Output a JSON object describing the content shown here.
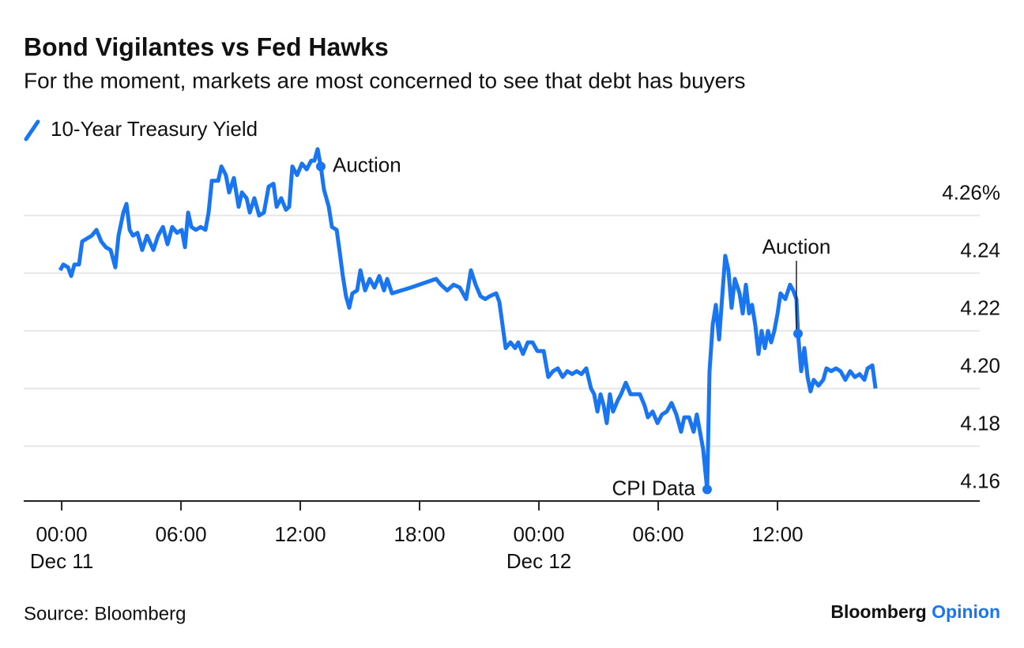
{
  "chart_data": {
    "type": "line",
    "title": "Bond Vigilantes vs Fed Hawks",
    "subtitle": "For the moment, markets are most concerned to see that debt has buyers",
    "source": "Source: Bloomberg",
    "brand": [
      "Bloomberg",
      "Opinion"
    ],
    "xlim": [
      -1.91,
      46.17
    ],
    "ylim": [
      4.161,
      4.285
    ],
    "xticks": [
      {
        "value": 0,
        "label": "00:00",
        "date": "Dec 11"
      },
      {
        "value": 6,
        "label": "06:00"
      },
      {
        "value": 12,
        "label": "12:00"
      },
      {
        "value": 18,
        "label": "18:00"
      },
      {
        "value": 24,
        "label": "00:00",
        "date": "Dec 12"
      },
      {
        "value": 30,
        "label": "06:00"
      },
      {
        "value": 36,
        "label": "12:00"
      }
    ],
    "yticks": [
      {
        "value": 4.26,
        "label": "4.26%"
      },
      4.24,
      4.22,
      {
        "value": 4.2,
        "label": "4.20"
      },
      4.18,
      4.16
    ],
    "grid": true,
    "annotations": [
      {
        "text": "Auction",
        "x": 13.03,
        "y": 4.277
      },
      {
        "text": "Auction",
        "x": 37.03,
        "y": 4.219
      },
      {
        "text": "CPI Data",
        "x": 32.46,
        "y": 4.165
      }
    ],
    "series": [
      {
        "name": "10-Year Treasury Yield",
        "color": "#1a75f0",
        "x": [
          -0.08,
          0.08,
          0.32,
          0.48,
          0.64,
          0.87,
          1.03,
          1.27,
          1.51,
          1.75,
          1.99,
          2.22,
          2.46,
          2.7,
          2.86,
          3.1,
          3.26,
          3.42,
          3.58,
          3.81,
          4.05,
          4.29,
          4.61,
          4.85,
          5.09,
          5.32,
          5.56,
          5.8,
          6.04,
          6.2,
          6.36,
          6.52,
          6.75,
          6.99,
          7.23,
          7.39,
          7.55,
          7.87,
          8.03,
          8.26,
          8.42,
          8.66,
          8.9,
          9.06,
          9.3,
          9.46,
          9.69,
          9.93,
          10.17,
          10.41,
          10.65,
          10.81,
          11.04,
          11.28,
          11.44,
          11.6,
          11.84,
          12.08,
          12.32,
          12.55,
          12.71,
          12.87,
          13.03,
          13.19,
          13.43,
          13.59,
          13.83,
          13.99,
          14.14,
          14.3,
          14.46,
          14.62,
          14.86,
          15.02,
          15.26,
          15.49,
          15.73,
          15.97,
          16.21,
          16.37,
          16.61,
          17.56,
          18.83,
          19.07,
          19.39,
          19.71,
          20.02,
          20.34,
          20.58,
          20.82,
          21.06,
          21.3,
          21.53,
          21.85,
          22.01,
          22.17,
          22.33,
          22.57,
          22.8,
          22.96,
          23.2,
          23.44,
          23.68,
          23.92,
          24.24,
          24.47,
          24.71,
          24.95,
          25.19,
          25.43,
          25.67,
          25.9,
          26.14,
          26.38,
          26.62,
          26.78,
          26.94,
          27.1,
          27.26,
          27.41,
          27.57,
          27.73,
          27.97,
          28.13,
          28.37,
          28.61,
          28.84,
          29.08,
          29.32,
          29.48,
          29.72,
          29.96,
          30.19,
          30.43,
          30.67,
          30.91,
          31.15,
          31.31,
          31.55,
          31.78,
          31.94,
          32.1,
          32.26,
          32.46,
          32.58,
          32.74,
          32.9,
          33.06,
          33.21,
          33.37,
          33.53,
          33.69,
          33.85,
          34.09,
          34.25,
          34.41,
          34.57,
          34.72,
          34.88,
          35.04,
          35.2,
          35.36,
          35.52,
          35.68,
          35.84,
          36.0,
          36.15,
          36.39,
          36.63,
          36.79,
          36.95,
          37.03,
          37.19,
          37.35,
          37.51,
          37.66,
          37.82,
          38.06,
          38.3,
          38.46,
          38.7,
          38.94,
          39.17,
          39.41,
          39.65,
          39.89,
          40.13,
          40.37,
          40.53,
          40.77,
          40.93
        ],
        "values": [
          4.241,
          4.243,
          4.242,
          4.239,
          4.243,
          4.243,
          4.251,
          4.252,
          4.253,
          4.255,
          4.251,
          4.249,
          4.248,
          4.242,
          4.253,
          4.261,
          4.264,
          4.255,
          4.253,
          4.254,
          4.248,
          4.253,
          4.248,
          4.253,
          4.256,
          4.25,
          4.256,
          4.254,
          4.255,
          4.249,
          4.261,
          4.256,
          4.255,
          4.256,
          4.255,
          4.261,
          4.272,
          4.272,
          4.277,
          4.274,
          4.268,
          4.273,
          4.263,
          4.268,
          4.266,
          4.261,
          4.266,
          4.26,
          4.261,
          4.27,
          4.271,
          4.263,
          4.266,
          4.262,
          4.263,
          4.277,
          4.274,
          4.278,
          4.276,
          4.279,
          4.279,
          4.283,
          4.277,
          4.269,
          4.263,
          4.256,
          4.255,
          4.247,
          4.239,
          4.232,
          4.228,
          4.233,
          4.234,
          4.241,
          4.234,
          4.238,
          4.235,
          4.239,
          4.234,
          4.238,
          4.233,
          4.235,
          4.238,
          4.236,
          4.234,
          4.236,
          4.235,
          4.231,
          4.241,
          4.236,
          4.232,
          4.231,
          4.232,
          4.233,
          4.23,
          4.222,
          4.214,
          4.216,
          4.214,
          4.216,
          4.212,
          4.216,
          4.216,
          4.213,
          4.213,
          4.204,
          4.206,
          4.207,
          4.204,
          4.206,
          4.205,
          4.206,
          4.205,
          4.207,
          4.2,
          4.198,
          4.192,
          4.198,
          4.194,
          4.188,
          4.198,
          4.192,
          4.196,
          4.198,
          4.202,
          4.198,
          4.198,
          4.198,
          4.194,
          4.19,
          4.192,
          4.188,
          4.191,
          4.192,
          4.195,
          4.191,
          4.185,
          4.19,
          4.19,
          4.185,
          4.191,
          4.185,
          4.179,
          4.165,
          4.206,
          4.222,
          4.229,
          4.217,
          4.231,
          4.246,
          4.241,
          4.228,
          4.238,
          4.233,
          4.226,
          4.236,
          4.226,
          4.229,
          4.222,
          4.212,
          4.22,
          4.214,
          4.22,
          4.216,
          4.22,
          4.226,
          4.233,
          4.231,
          4.236,
          4.234,
          4.231,
          4.219,
          4.206,
          4.214,
          4.204,
          4.199,
          4.203,
          4.201,
          4.203,
          4.207,
          4.206,
          4.207,
          4.206,
          4.203,
          4.206,
          4.204,
          4.205,
          4.203,
          4.207,
          4.208,
          4.2
        ]
      }
    ]
  }
}
